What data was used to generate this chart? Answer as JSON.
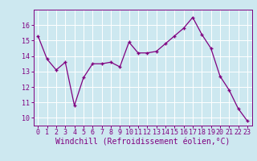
{
  "x": [
    0,
    1,
    2,
    3,
    4,
    5,
    6,
    7,
    8,
    9,
    10,
    11,
    12,
    13,
    14,
    15,
    16,
    17,
    18,
    19,
    20,
    21,
    22,
    23
  ],
  "y": [
    15.3,
    13.8,
    13.1,
    13.6,
    10.8,
    12.6,
    13.5,
    13.5,
    13.6,
    13.3,
    14.9,
    14.2,
    14.2,
    14.3,
    14.8,
    15.3,
    15.8,
    16.5,
    15.4,
    14.5,
    12.7,
    11.8,
    10.6,
    9.8
  ],
  "line_color": "#800080",
  "marker": "+",
  "marker_size": 3.5,
  "bg_color": "#cde8f0",
  "grid_color": "#ffffff",
  "xlabel": "Windchill (Refroidissement éolien,°C)",
  "ylim": [
    9.5,
    17.0
  ],
  "xlim": [
    -0.5,
    23.5
  ],
  "yticks": [
    10,
    11,
    12,
    13,
    14,
    15,
    16
  ],
  "xticks": [
    0,
    1,
    2,
    3,
    4,
    5,
    6,
    7,
    8,
    9,
    10,
    11,
    12,
    13,
    14,
    15,
    16,
    17,
    18,
    19,
    20,
    21,
    22,
    23
  ],
  "font_color": "#800080",
  "tick_fontsize": 6.0,
  "label_fontsize": 7.0
}
